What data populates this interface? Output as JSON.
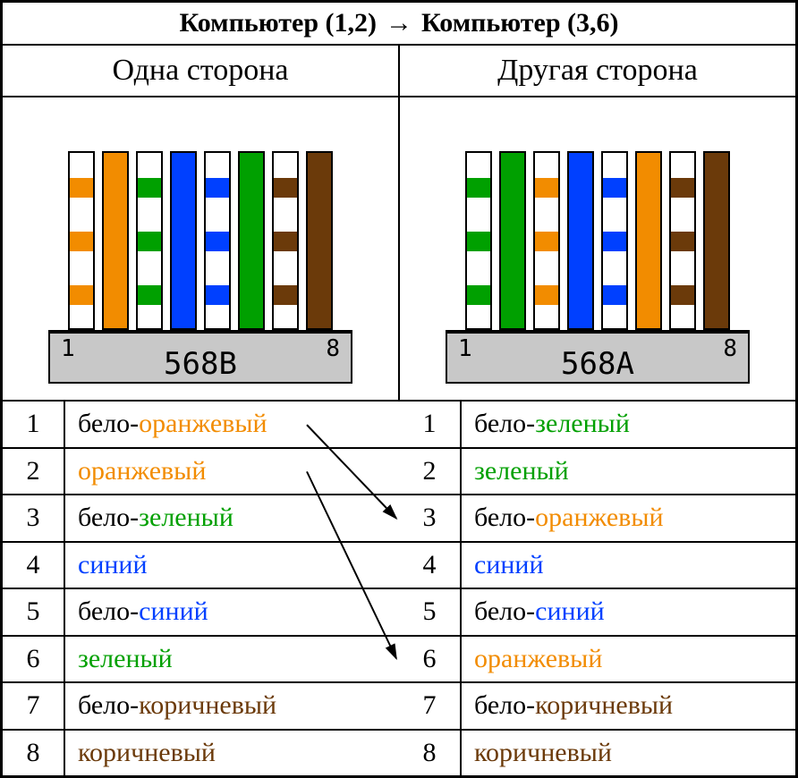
{
  "title": {
    "left": "Компьютер (1,2)",
    "right": "Компьютер (3,6)"
  },
  "subheader": {
    "left": "Одна сторона",
    "right": "Другая сторона"
  },
  "colors": {
    "orange": "#f28c00",
    "green": "#00a000",
    "blue": "#0040ff",
    "brown": "#6b3a0a",
    "black": "#000000"
  },
  "connectors": {
    "left": {
      "standard": "568B",
      "pin_start": "1",
      "pin_end": "8",
      "wires": [
        {
          "type": "striped",
          "color": "#f28c00"
        },
        {
          "type": "solid",
          "color": "#f28c00"
        },
        {
          "type": "striped",
          "color": "#00a000"
        },
        {
          "type": "solid",
          "color": "#0040ff"
        },
        {
          "type": "striped",
          "color": "#0040ff"
        },
        {
          "type": "solid",
          "color": "#00a000"
        },
        {
          "type": "striped",
          "color": "#6b3a0a"
        },
        {
          "type": "solid",
          "color": "#6b3a0a"
        }
      ]
    },
    "right": {
      "standard": "568A",
      "pin_start": "1",
      "pin_end": "8",
      "wires": [
        {
          "type": "striped",
          "color": "#00a000"
        },
        {
          "type": "solid",
          "color": "#00a000"
        },
        {
          "type": "striped",
          "color": "#f28c00"
        },
        {
          "type": "solid",
          "color": "#0040ff"
        },
        {
          "type": "striped",
          "color": "#0040ff"
        },
        {
          "type": "solid",
          "color": "#f28c00"
        },
        {
          "type": "striped",
          "color": "#6b3a0a"
        },
        {
          "type": "solid",
          "color": "#6b3a0a"
        }
      ]
    }
  },
  "crossover_arrows": [
    {
      "from_row": 1,
      "to_row": 3
    },
    {
      "from_row": 2,
      "to_row": 6
    }
  ],
  "pinout": {
    "left": [
      {
        "num": "1",
        "parts": [
          {
            "t": "бело-",
            "c": "#000000"
          },
          {
            "t": "оранжевый",
            "c": "#f28c00"
          }
        ]
      },
      {
        "num": "2",
        "parts": [
          {
            "t": "оранжевый",
            "c": "#f28c00"
          }
        ]
      },
      {
        "num": "3",
        "parts": [
          {
            "t": "бело-",
            "c": "#000000"
          },
          {
            "t": "зеленый",
            "c": "#00a000"
          }
        ]
      },
      {
        "num": "4",
        "parts": [
          {
            "t": "синий",
            "c": "#0040ff"
          }
        ]
      },
      {
        "num": "5",
        "parts": [
          {
            "t": "бело-",
            "c": "#000000"
          },
          {
            "t": "синий",
            "c": "#0040ff"
          }
        ]
      },
      {
        "num": "6",
        "parts": [
          {
            "t": "зеленый",
            "c": "#00a000"
          }
        ]
      },
      {
        "num": "7",
        "parts": [
          {
            "t": "бело-",
            "c": "#000000"
          },
          {
            "t": "коричневый",
            "c": "#6b3a0a"
          }
        ]
      },
      {
        "num": "8",
        "parts": [
          {
            "t": "коричневый",
            "c": "#6b3a0a"
          }
        ]
      }
    ],
    "right": [
      {
        "num": "1",
        "parts": [
          {
            "t": "бело-",
            "c": "#000000"
          },
          {
            "t": "зеленый",
            "c": "#00a000"
          }
        ]
      },
      {
        "num": "2",
        "parts": [
          {
            "t": "зеленый",
            "c": "#00a000"
          }
        ]
      },
      {
        "num": "3",
        "parts": [
          {
            "t": "бело-",
            "c": "#000000"
          },
          {
            "t": "оранжевый",
            "c": "#f28c00"
          }
        ]
      },
      {
        "num": "4",
        "parts": [
          {
            "t": "синий",
            "c": "#0040ff"
          }
        ]
      },
      {
        "num": "5",
        "parts": [
          {
            "t": "бело-",
            "c": "#000000"
          },
          {
            "t": "синий",
            "c": "#0040ff"
          }
        ]
      },
      {
        "num": "6",
        "parts": [
          {
            "t": "оранжевый",
            "c": "#f28c00"
          }
        ]
      },
      {
        "num": "7",
        "parts": [
          {
            "t": "бело-",
            "c": "#000000"
          },
          {
            "t": "коричневый",
            "c": "#6b3a0a"
          }
        ]
      },
      {
        "num": "8",
        "parts": [
          {
            "t": "коричневый",
            "c": "#6b3a0a"
          }
        ]
      }
    ]
  }
}
